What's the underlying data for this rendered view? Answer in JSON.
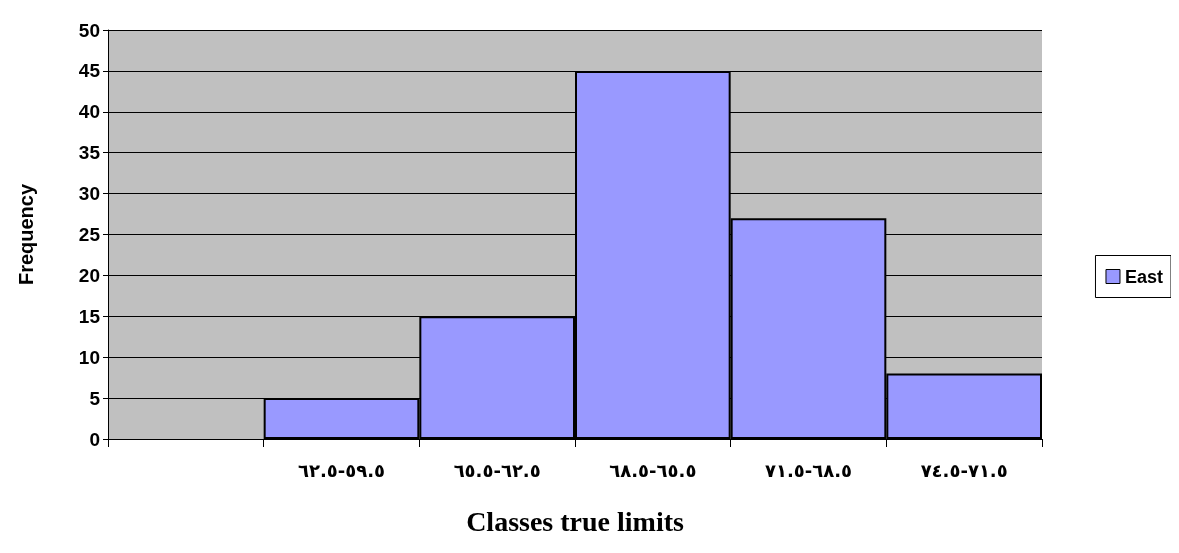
{
  "chart_data": {
    "type": "bar",
    "xlabel": "Classes true limits",
    "ylabel": "Frequency",
    "categories": [
      null,
      "٥٩.٥-٦٢.٥",
      "٦٢.٥-٦٥.٥",
      "٦٥.٥-٦٨.٥",
      "٦٨.٥-٧١.٥",
      "٧١.٥-٧٤.٥"
    ],
    "series": [
      {
        "name": "East",
        "color": "#9999ff",
        "values": [
          null,
          5,
          15,
          45,
          27,
          8
        ]
      }
    ],
    "ylim": [
      0,
      50
    ],
    "yticks": [
      0,
      5,
      10,
      15,
      20,
      25,
      30,
      35,
      40,
      45,
      50
    ],
    "grid": "y",
    "legend": "right"
  }
}
